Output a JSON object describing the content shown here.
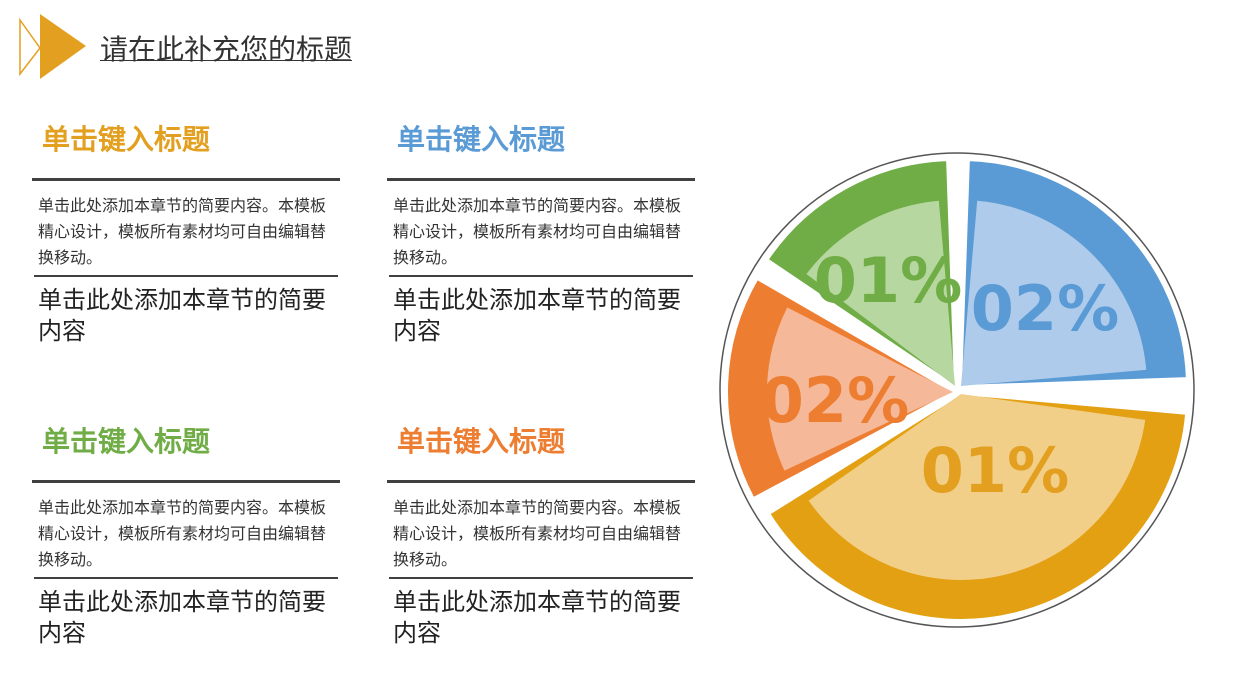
{
  "header": {
    "title": "请在此补充您的标题"
  },
  "blocks": [
    {
      "title": "单击键入标题",
      "desc": "单击此处添加本章节的简要内容。本模板精心设计，模板所有素材均可自由编辑替换移动。",
      "subtitle": "单击此处添加本章节的简要内容"
    },
    {
      "title": "单击键入标题",
      "desc": "单击此处添加本章节的简要内容。本模板精心设计，模板所有素材均可自由编辑替换移动。",
      "subtitle": "单击此处添加本章节的简要内容"
    },
    {
      "title": "单击键入标题",
      "desc": "单击此处添加本章节的简要内容。本模板精心设计，模板所有素材均可自由编辑替换移动。",
      "subtitle": "单击此处添加本章节的简要内容"
    },
    {
      "title": "单击键入标题",
      "desc": "单击此处添加本章节的简要内容。本模板精心设计，模板所有素材均可自由编辑替换移动。",
      "subtitle": "单击此处添加本章节的简要内容"
    }
  ],
  "pie": {
    "labels": [
      "01%",
      "02%",
      "02%",
      "01%"
    ]
  }
}
